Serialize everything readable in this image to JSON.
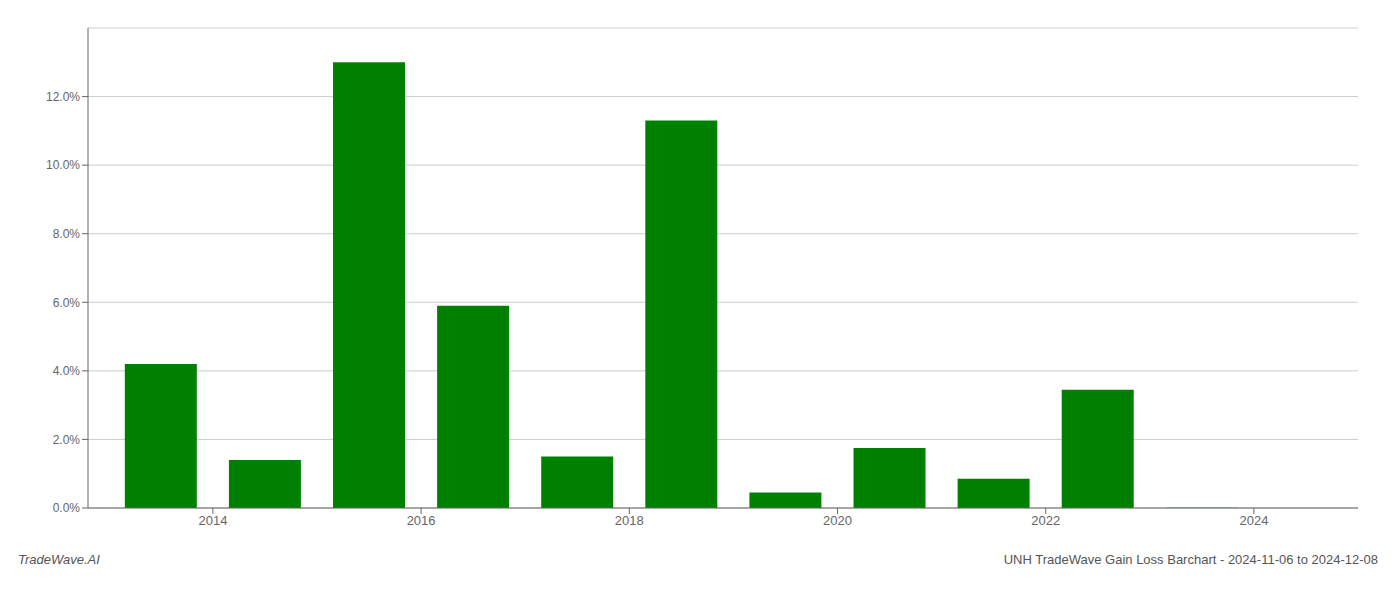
{
  "chart_data": {
    "type": "bar",
    "x": [
      2013,
      2014,
      2015,
      2016,
      2017,
      2018,
      2019,
      2020,
      2021,
      2022,
      2023
    ],
    "values": [
      0.042,
      0.014,
      0.13,
      0.059,
      0.015,
      0.113,
      0.0045,
      0.0175,
      0.0085,
      0.0345,
      0.0001
    ],
    "color": "#008000",
    "xlim": [
      2012.3,
      2024.5
    ],
    "xticks": [
      {
        "value": 2013.5,
        "label": "2014"
      },
      {
        "value": 2015.5,
        "label": "2016"
      },
      {
        "value": 2017.5,
        "label": "2018"
      },
      {
        "value": 2019.5,
        "label": "2020"
      },
      {
        "value": 2021.5,
        "label": "2022"
      },
      {
        "value": 2023.5,
        "label": "2024"
      }
    ],
    "ylim": [
      0,
      0.14
    ],
    "yticks": [
      {
        "value": 0.0,
        "label": "0.0%"
      },
      {
        "value": 0.02,
        "label": "2.0%"
      },
      {
        "value": 0.04,
        "label": "4.0%"
      },
      {
        "value": 0.06,
        "label": "6.0%"
      },
      {
        "value": 0.08,
        "label": "8.0%"
      },
      {
        "value": 0.1,
        "label": "10.0%"
      },
      {
        "value": 0.12,
        "label": "12.0%"
      }
    ],
    "grid": true,
    "annotations": [
      "TradeWave.AI",
      "UNH TradeWave Gain Loss Barchart - 2024-11-06 to 2024-12-08"
    ]
  }
}
